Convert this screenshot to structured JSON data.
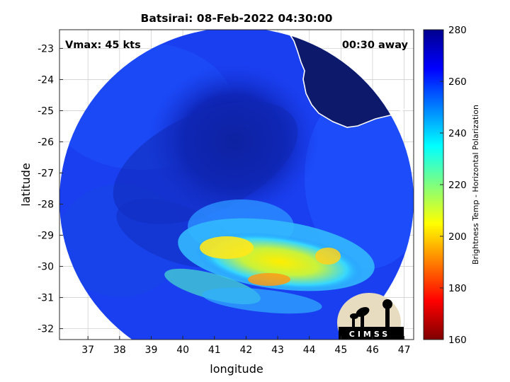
{
  "title": "Batsirai: 08-Feb-2022 04:30:00",
  "vmax_label": "Vmax: 45 kts",
  "time_offset_label": "00:30 away",
  "xlabel": "longitude",
  "ylabel": "latitude",
  "x_ticks": [
    "37",
    "38",
    "39",
    "40",
    "41",
    "42",
    "43",
    "44",
    "45",
    "46",
    "47"
  ],
  "y_ticks": [
    "-23",
    "-24",
    "-25",
    "-26",
    "-27",
    "-28",
    "-29",
    "-30",
    "-31",
    "-32"
  ],
  "colorbar": {
    "label": "Brightness Temp - Horizontal Polarization",
    "ticks": [
      "280",
      "260",
      "240",
      "220",
      "200",
      "180",
      "160"
    ],
    "range": [
      160,
      280
    ],
    "colors": [
      "#7f0000",
      "#ff0000",
      "#ff7f00",
      "#ffff00",
      "#7fff7f",
      "#00ffff",
      "#007fff",
      "#0000ff",
      "#00008f"
    ]
  },
  "logo_text": "CIMSS",
  "colors": {
    "land": "#0d1a6b",
    "ocean_dark": "#0a1e9e",
    "ocean_mid": "#1a3ff0",
    "coastline": "#ffffff",
    "grid": "#d0d0d0"
  }
}
